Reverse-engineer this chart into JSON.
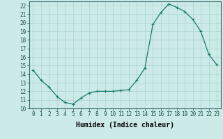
{
  "x": [
    0,
    1,
    2,
    3,
    4,
    5,
    6,
    7,
    8,
    9,
    10,
    11,
    12,
    13,
    14,
    15,
    16,
    17,
    18,
    19,
    20,
    21,
    22,
    23
  ],
  "y": [
    14.5,
    13.3,
    12.5,
    11.4,
    10.7,
    10.5,
    11.2,
    11.8,
    12.0,
    12.0,
    12.0,
    12.1,
    12.2,
    13.3,
    14.7,
    19.8,
    21.2,
    22.2,
    21.8,
    21.3,
    20.4,
    19.0,
    16.3,
    15.1
  ],
  "line_color": "#1a7a6e",
  "marker": "+",
  "marker_size": 3,
  "bg_color": "#cceae7",
  "grid_color": "#aad4d0",
  "xlabel": "Humidex (Indice chaleur)",
  "xlim": [
    -0.5,
    23.5
  ],
  "ylim": [
    10,
    22.5
  ],
  "xticks": [
    0,
    1,
    2,
    3,
    4,
    5,
    6,
    7,
    8,
    9,
    10,
    11,
    12,
    13,
    14,
    15,
    16,
    17,
    18,
    19,
    20,
    21,
    22,
    23
  ],
  "yticks": [
    10,
    11,
    12,
    13,
    14,
    15,
    16,
    17,
    18,
    19,
    20,
    21,
    22
  ],
  "tick_label_fontsize": 5.5,
  "xlabel_fontsize": 7.0
}
